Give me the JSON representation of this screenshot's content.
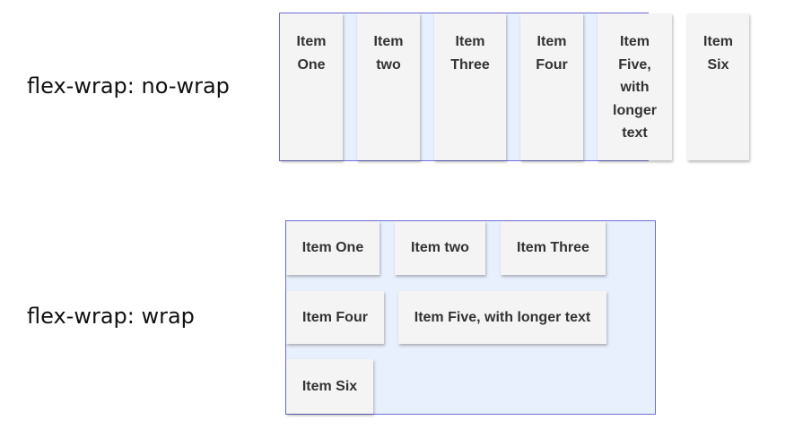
{
  "rows": [
    {
      "label": "flex-wrap: no-wrap",
      "items": [
        "Item One",
        "Item two",
        "Item Three",
        "Item Four",
        "Item Five, with longer text",
        "Item Six"
      ]
    },
    {
      "label": "flex-wrap: wrap",
      "items": [
        "Item One",
        "Item two",
        "Item Three",
        "Item Four",
        "Item Five, with longer text",
        "Item Six"
      ]
    }
  ],
  "colors": {
    "container_border": "#6f6fd6",
    "container_background": "#e9f0fd",
    "item_background": "#f3f4f3",
    "item_text": "#333333"
  }
}
